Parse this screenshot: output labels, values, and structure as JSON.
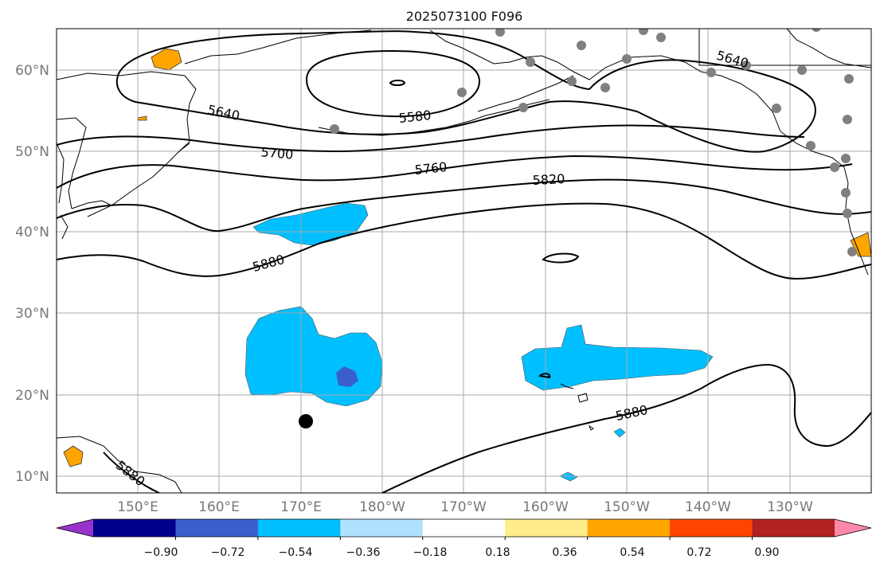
{
  "title": "2025073100 F096",
  "lat_labels": [
    "60°N",
    "50°N",
    "40°N",
    "30°N",
    "20°N",
    "10°N"
  ],
  "lon_labels": [
    "150°E",
    "160°E",
    "170°E",
    "180°W",
    "170°W",
    "160°W",
    "150°W",
    "140°W",
    "130°W"
  ],
  "contour_labels": [
    "5640",
    "5580",
    "5700",
    "5760",
    "5820",
    "5880",
    "5640",
    "5880",
    "5880"
  ],
  "colorbar": {
    "tick_labels": [
      "−0.90",
      "−0.72",
      "−0.54",
      "−0.36",
      "−0.18",
      "0.18",
      "0.36",
      "0.54",
      "0.72",
      "0.90"
    ],
    "colors": [
      "#9932CC",
      "#00008B",
      "#3A5FCD",
      "#00BFFF",
      "#B0E2FF",
      "#FFFFFF",
      "#FFEC8B",
      "#FFA500",
      "#FF4500",
      "#B22222",
      "#FF88AA"
    ]
  },
  "layers": {
    "geopotential_contours": "black solid lines (gpm)",
    "shading": "anomaly field filled contours",
    "markers": "grey station dots, black dot marker"
  },
  "extent": {
    "lon_min": 140,
    "lon_max": 240,
    "lat_min": 8,
    "lat_max": 65
  }
}
